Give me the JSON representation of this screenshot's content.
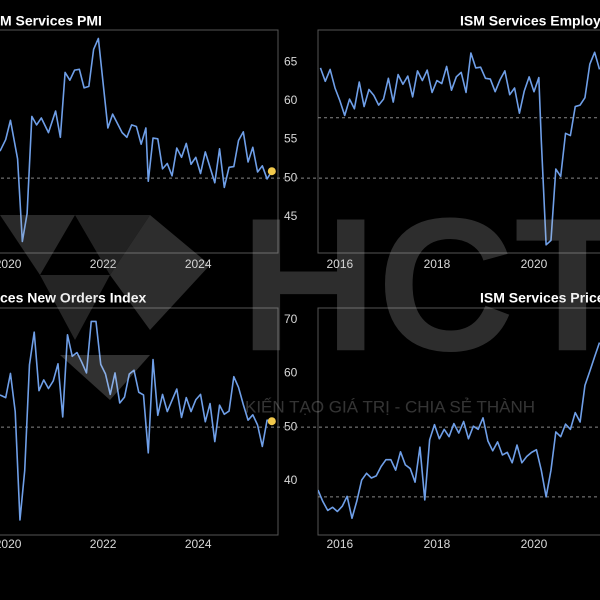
{
  "chart_data": [
    {
      "type": "line",
      "title": "M Services PMI",
      "xlim": [
        2019.83,
        2025.68
      ],
      "ylim": [
        40.3,
        69.2
      ],
      "xticks": [
        2020,
        2022,
        2024
      ],
      "yticks": [
        45,
        50,
        55,
        60,
        65
      ],
      "reference_line": 50,
      "end_marker_color": "#f2c94c",
      "x": [
        2019.83,
        2019.95,
        2020.05,
        2020.2,
        2020.3,
        2020.4,
        2020.5,
        2020.6,
        2020.7,
        2020.85,
        2021.0,
        2021.1,
        2021.2,
        2021.3,
        2021.4,
        2021.5,
        2021.6,
        2021.7,
        2021.8,
        2021.9,
        2022.0,
        2022.1,
        2022.2,
        2022.3,
        2022.4,
        2022.5,
        2022.6,
        2022.7,
        2022.8,
        2022.9,
        2022.95,
        2023.05,
        2023.15,
        2023.25,
        2023.35,
        2023.45,
        2023.55,
        2023.65,
        2023.75,
        2023.85,
        2023.95,
        2024.05,
        2024.15,
        2024.25,
        2024.35,
        2024.45,
        2024.55,
        2024.65,
        2024.75,
        2024.85,
        2024.95,
        2025.05,
        2025.15,
        2025.25,
        2025.35,
        2025.45,
        2025.55
      ],
      "series": [
        {
          "color": "#6f9fe8",
          "values": [
            53.5,
            55,
            57.5,
            52.5,
            41.8,
            45.4,
            58,
            56.9,
            57.8,
            55.9,
            58.7,
            55.3,
            63.7,
            62.7,
            64,
            64.1,
            61.7,
            61.9,
            66.7,
            68.1,
            62.3,
            56.5,
            58.3,
            57.1,
            55.9,
            55.3,
            56.9,
            56.7,
            54.4,
            56.5,
            49.6,
            55.2,
            55.1,
            51.2,
            51.9,
            50.3,
            53.9,
            52.7,
            54.5,
            51.8,
            52.7,
            50.6,
            53.4,
            51.4,
            49.4,
            53.8,
            48.8,
            51.4,
            51.5,
            54.9,
            56,
            52.1,
            54,
            50.8,
            51.6,
            49.9,
            50.9
          ]
        }
      ]
    },
    {
      "type": "line",
      "title": "ISM Services Employm",
      "xlim": [
        2015.55,
        2021.36
      ],
      "ylim": [
        31.8,
        61.8
      ],
      "xticks": [
        2016,
        2018,
        2020
      ],
      "reference_line": 50,
      "x": [
        2015.6,
        2015.7,
        2015.8,
        2015.9,
        2016.0,
        2016.1,
        2016.2,
        2016.3,
        2016.4,
        2016.5,
        2016.6,
        2016.7,
        2016.8,
        2016.9,
        2017.0,
        2017.1,
        2017.2,
        2017.3,
        2017.4,
        2017.5,
        2017.6,
        2017.7,
        2017.8,
        2017.9,
        2018.0,
        2018.1,
        2018.2,
        2018.3,
        2018.4,
        2018.5,
        2018.6,
        2018.7,
        2018.8,
        2018.9,
        2019.0,
        2019.1,
        2019.2,
        2019.3,
        2019.4,
        2019.5,
        2019.6,
        2019.7,
        2019.8,
        2019.9,
        2020.0,
        2020.1,
        2020.15,
        2020.25,
        2020.35,
        2020.45,
        2020.55,
        2020.65,
        2020.75,
        2020.85,
        2020.95,
        2021.05,
        2021.15,
        2021.25,
        2021.35
      ],
      "series": [
        {
          "color": "#6f9fe8",
          "values": [
            56.7,
            54.9,
            56.5,
            54,
            52.3,
            50.3,
            52.5,
            51.2,
            54.8,
            51.5,
            53.8,
            53,
            51.7,
            52.5,
            55.3,
            52.1,
            55.8,
            54.5,
            55.6,
            52.8,
            56.3,
            55,
            56.4,
            53.4,
            55,
            54.6,
            56.9,
            53.7,
            55.5,
            56.1,
            53.4,
            58.7,
            56.7,
            56.8,
            55.3,
            55.2,
            53.5,
            55.1,
            56.3,
            53.1,
            54,
            50.6,
            53.6,
            55.5,
            53.5,
            55.4,
            47,
            32.9,
            33.5,
            43.1,
            42.1,
            47.9,
            47.6,
            51.5,
            51.7,
            52.7,
            57.2,
            58.8,
            56.5
          ]
        }
      ]
    },
    {
      "type": "line",
      "title": "ces New Orders Index",
      "xlim": [
        2019.83,
        2025.68
      ],
      "ylim": [
        29.9,
        72.2
      ],
      "xticks": [
        2020,
        2022,
        2024
      ],
      "yticks": [
        40,
        50,
        60,
        70
      ],
      "reference_line": 50,
      "end_marker_color": "#f2c94c",
      "x": [
        2019.83,
        2019.95,
        2020.05,
        2020.15,
        2020.25,
        2020.35,
        2020.45,
        2020.55,
        2020.65,
        2020.75,
        2020.85,
        2020.95,
        2021.05,
        2021.15,
        2021.25,
        2021.35,
        2021.45,
        2021.55,
        2021.65,
        2021.75,
        2021.85,
        2021.95,
        2022.05,
        2022.15,
        2022.25,
        2022.35,
        2022.45,
        2022.55,
        2022.65,
        2022.75,
        2022.85,
        2022.95,
        2023.05,
        2023.15,
        2023.25,
        2023.35,
        2023.45,
        2023.55,
        2023.65,
        2023.75,
        2023.85,
        2023.95,
        2024.05,
        2024.15,
        2024.25,
        2024.35,
        2024.45,
        2024.55,
        2024.65,
        2024.75,
        2024.85,
        2024.95,
        2025.05,
        2025.15,
        2025.25,
        2025.35,
        2025.45,
        2025.55
      ],
      "series": [
        {
          "color": "#6f9fe8",
          "values": [
            56,
            55.5,
            60,
            52.9,
            32.7,
            41.9,
            61.6,
            67.7,
            56.8,
            58.8,
            57.2,
            58.6,
            61.8,
            51.9,
            67.2,
            63.2,
            63.9,
            62.1,
            60.1,
            69.7,
            69.7,
            61.7,
            59.9,
            56.1,
            60.1,
            54.5,
            55.6,
            59.9,
            60.6,
            56.5,
            56,
            45.2,
            62.6,
            52.2,
            56.1,
            52.9,
            55,
            57.1,
            51.8,
            55.5,
            52.9,
            55.1,
            56.1,
            51,
            54.4,
            47.3,
            54.1,
            52.4,
            53,
            59.4,
            57.4,
            54.2,
            51.3,
            52.3,
            50.4,
            46.4,
            51.3,
            51.1
          ]
        }
      ]
    },
    {
      "type": "line",
      "title": "ISM Services Price",
      "xlim": [
        2015.55,
        2021.36
      ],
      "ylim": [
        42.7,
        86.1
      ],
      "xticks": [
        2016,
        2018,
        2020
      ],
      "reference_line": 50,
      "x": [
        2015.55,
        2015.65,
        2015.75,
        2015.85,
        2015.95,
        2016.05,
        2016.15,
        2016.25,
        2016.35,
        2016.45,
        2016.55,
        2016.65,
        2016.75,
        2016.85,
        2016.95,
        2017.05,
        2017.15,
        2017.25,
        2017.35,
        2017.45,
        2017.55,
        2017.65,
        2017.75,
        2017.85,
        2017.95,
        2018.05,
        2018.15,
        2018.25,
        2018.35,
        2018.45,
        2018.55,
        2018.65,
        2018.75,
        2018.85,
        2018.95,
        2019.05,
        2019.15,
        2019.25,
        2019.35,
        2019.45,
        2019.55,
        2019.65,
        2019.75,
        2019.85,
        2019.95,
        2020.05,
        2020.15,
        2020.25,
        2020.35,
        2020.45,
        2020.55,
        2020.65,
        2020.75,
        2020.85,
        2020.95,
        2021.05,
        2021.15,
        2021.25,
        2021.35
      ],
      "series": [
        {
          "color": "#6f9fe8",
          "values": [
            51.3,
            49.1,
            47.4,
            48,
            47.2,
            48.2,
            50.1,
            45.9,
            49.2,
            53.2,
            54.5,
            53.6,
            54,
            55.8,
            57.1,
            57.1,
            55.1,
            58.6,
            56.1,
            55.4,
            52.8,
            59.5,
            49.4,
            60.9,
            63.8,
            61.1,
            62.9,
            61.5,
            64,
            62.2,
            64.4,
            61.1,
            63.5,
            62.9,
            65.1,
            60.7,
            58.8,
            60.5,
            58,
            58.5,
            56.5,
            59.9,
            56.5,
            57.7,
            58.5,
            59,
            55.1,
            50,
            55.1,
            62.4,
            61.5,
            63.9,
            62.9,
            66.1,
            64.3,
            71.3,
            74,
            76.8,
            79.5
          ]
        }
      ]
    }
  ],
  "watermark": {
    "text": "HCT",
    "tagline": "KIẾN TẠO GIÁ TRỊ - CHIA SẺ THÀNH"
  }
}
